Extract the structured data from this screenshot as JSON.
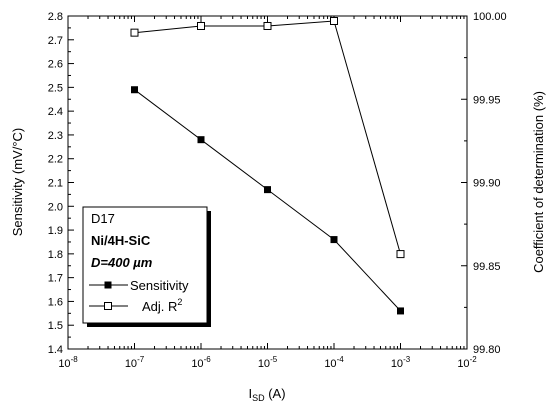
{
  "chart_data": {
    "type": "line",
    "x": [
      1e-07,
      1e-06,
      1e-05,
      0.0001,
      0.001
    ],
    "xlabel_main": "I",
    "xlabel_sub": "SD",
    "xlabel_unit": " (A)",
    "xscale": "log",
    "xlim": [
      1e-08,
      0.01
    ],
    "x_ticks": [
      {
        "base": "10",
        "exp": "-8"
      },
      {
        "base": "10",
        "exp": "-7"
      },
      {
        "base": "10",
        "exp": "-6"
      },
      {
        "base": "10",
        "exp": "-5"
      },
      {
        "base": "10",
        "exp": "-4"
      },
      {
        "base": "10",
        "exp": "-3"
      },
      {
        "base": "10",
        "exp": "-2"
      }
    ],
    "ylabel_left": "Sensitivity (mV/°C)",
    "ylim_left": [
      1.4,
      2.8
    ],
    "y_left_ticks": [
      "1.4",
      "1.5",
      "1.6",
      "1.7",
      "1.8",
      "1.9",
      "2.0",
      "2.1",
      "2.2",
      "2.3",
      "2.4",
      "2.5",
      "2.6",
      "2.7",
      "2.8"
    ],
    "ylabel_right": "Coefficient of determination (%)",
    "ylim_right": [
      99.8,
      100.0
    ],
    "y_right_ticks": [
      "99.80",
      "99.85",
      "99.90",
      "99.95",
      "100.00"
    ],
    "series": [
      {
        "name": "Sensitivity",
        "axis": "left",
        "marker": "filled-square",
        "values": [
          2.49,
          2.28,
          2.07,
          1.86,
          1.56
        ]
      },
      {
        "name": "Adj. R",
        "name_sup": "2",
        "axis": "right",
        "marker": "open-square",
        "values": [
          99.99,
          99.994,
          99.994,
          99.997,
          99.857
        ]
      }
    ],
    "annotation": {
      "line1": "D17",
      "line2": "Ni/4H-SiC",
      "line3": "D=400 µm"
    },
    "grid": false,
    "legend_position": "bottom-left"
  }
}
